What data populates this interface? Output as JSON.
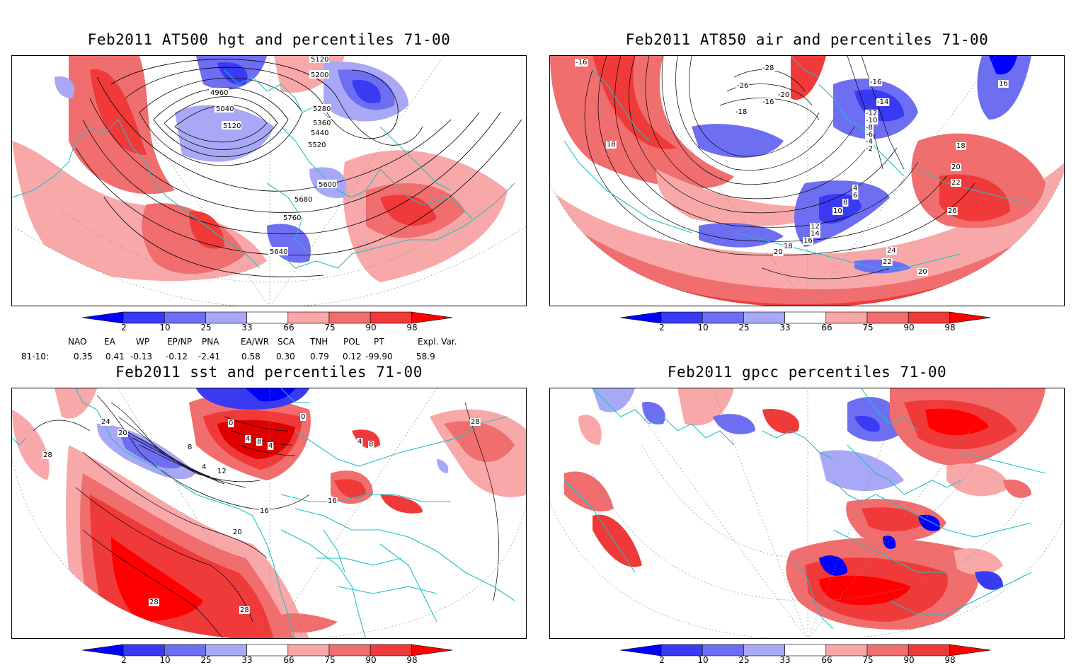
{
  "titles": {
    "p1": "Feb2011 AT500 hgt and percentiles 71-00",
    "p2": "Feb2011 AT850 air and percentiles 71-00",
    "p3": "Feb2011 sst and percentiles 71-00",
    "p4": "Feb2011 gpcc percentiles 71-00"
  },
  "colorbar": {
    "labels": [
      "2",
      "10",
      "25",
      "33",
      "66",
      "75",
      "90",
      "98"
    ],
    "colors": [
      "#0000ff",
      "#3a3af2",
      "#6e6ef2",
      "#a8a8f6",
      "#ffffff",
      "#f8a8a8",
      "#f06e6e",
      "#f03a3a",
      "#ff0000"
    ]
  },
  "teleconnection": {
    "headers": [
      "NAO",
      "EA",
      "WP",
      "EP/NP",
      "PNA",
      "EA/WR",
      "SCA",
      "TNH",
      "POL",
      "PT",
      "Expl. Var."
    ],
    "row_label": "81-10:",
    "values": [
      "0.35",
      "0.41",
      "-0.13",
      "-0.12",
      "-2.41",
      "0.58",
      "0.30",
      "0.79",
      "0.12",
      "-99.90",
      "58.9"
    ]
  },
  "contour_labels": {
    "p1": [
      "5120",
      "5200",
      "4960",
      "5040",
      "5120",
      "5280",
      "5360",
      "5440",
      "5520",
      "5600",
      "5680",
      "5760",
      "5640"
    ],
    "p2": [
      "-16",
      "18",
      "-28",
      "-26",
      "-20",
      "-16",
      "-18",
      "-14",
      "-12",
      "-10",
      "-8",
      "-6",
      "-4",
      "-2",
      "-16",
      "16",
      "18",
      "20",
      "22",
      "4",
      "6",
      "8",
      "10",
      "12",
      "14",
      "16",
      "18",
      "20",
      "24",
      "22",
      "20",
      "26"
    ],
    "p3": [
      "24",
      "28",
      "20",
      "0",
      "4",
      "8",
      "4",
      "0",
      "4",
      "8",
      "12",
      "16",
      "20",
      "28",
      "28",
      "16",
      "4",
      "8",
      "28"
    ],
    "p4": []
  }
}
